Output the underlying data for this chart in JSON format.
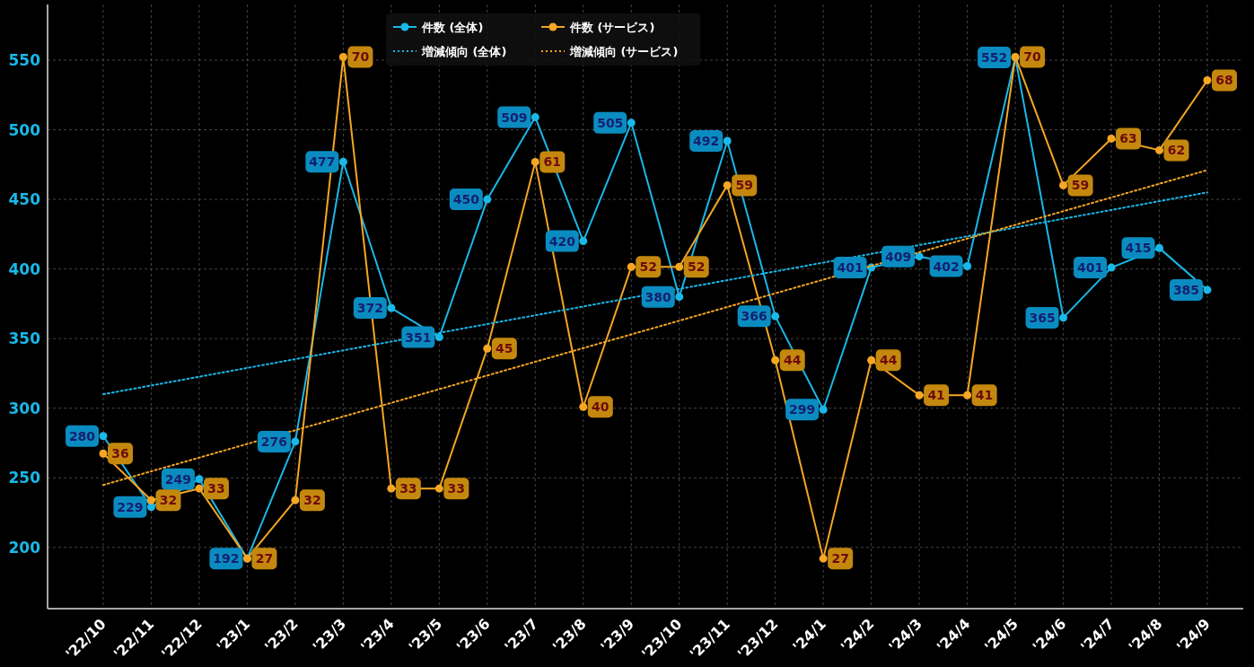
{
  "chart_data": {
    "type": "line",
    "categories": [
      "'22/10",
      "'22/11",
      "'22/12",
      "'23/1",
      "'23/2",
      "'23/3",
      "'23/4",
      "'23/5",
      "'23/6",
      "'23/7",
      "'23/8",
      "'23/9",
      "'23/10",
      "'23/11",
      "'23/12",
      "'24/1",
      "'24/2",
      "'24/3",
      "'24/4",
      "'24/5",
      "'24/6",
      "'24/7",
      "'24/8",
      "'24/9"
    ],
    "series": [
      {
        "name": "件数 (全体)",
        "color": "#1ab8e8",
        "marker": "circle",
        "values": [
          280,
          229,
          249,
          192,
          276,
          477,
          372,
          351,
          450,
          509,
          420,
          505,
          380,
          492,
          366,
          299,
          401,
          409,
          402,
          552,
          365,
          401,
          415,
          385
        ],
        "value_labels": [
          "280",
          "229",
          "249",
          "192",
          "276",
          "477",
          "372",
          "351",
          "450",
          "509",
          "420",
          "505",
          "380",
          "492",
          "366",
          "299",
          "401",
          "409",
          "402",
          "552",
          "365",
          "401",
          "415",
          "385"
        ]
      },
      {
        "name": "件数 (サービス)",
        "color": "#f5a623",
        "axis": "y2",
        "marker": "circle",
        "values": [
          36,
          32,
          33,
          27,
          32,
          70,
          33,
          33,
          45,
          61,
          40,
          52,
          52,
          59,
          44,
          27,
          44,
          41,
          41,
          70,
          59,
          63,
          62,
          68
        ],
        "value_labels": [
          "36",
          "32",
          "33",
          "27",
          "32",
          "70",
          "33",
          "33",
          "45",
          "61",
          "40",
          "52",
          "52",
          "59",
          "44",
          "27",
          "44",
          "41",
          "41",
          "70",
          "59",
          "63",
          "62",
          "68"
        ]
      },
      {
        "name": "増減傾向 (全体)",
        "color": "#1ab8e8",
        "line_style": "dotted",
        "marker": "none",
        "x": [
          "'22/10",
          "'24/9"
        ],
        "values": [
          310,
          455
        ]
      },
      {
        "name": "増減傾向 (サービス)",
        "color": "#f5a623",
        "axis": "y2",
        "line_style": "dotted",
        "marker": "none",
        "x": [
          "'22/10",
          "'24/9"
        ],
        "values": [
          33.3,
          60.3
        ]
      }
    ],
    "ylim": [
      156,
      590
    ],
    "yticks": [
      200,
      250,
      300,
      350,
      400,
      450,
      500,
      550
    ],
    "y2lim": [
      22.7,
      74.5
    ],
    "grid": true,
    "legend": "top"
  }
}
